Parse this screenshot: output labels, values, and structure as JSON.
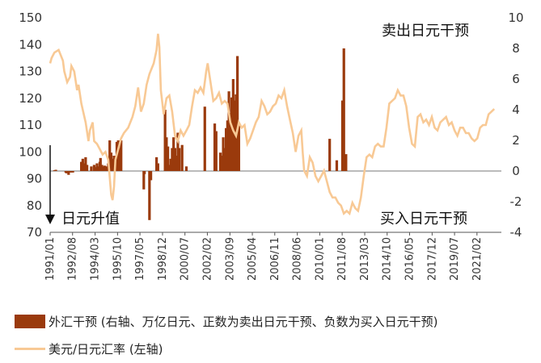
{
  "chart_data": {
    "type": "bar+line",
    "annotations": {
      "top_right": "卖出日元干预",
      "bottom_right": "买入日元干预",
      "left_arrow": "日元升值"
    },
    "left_axis": {
      "min": 70,
      "max": 150,
      "ticks": [
        "150",
        "140",
        "130",
        "120",
        "110",
        "100",
        "90",
        "80",
        "70"
      ]
    },
    "right_axis": {
      "min": -4,
      "max": 10,
      "ticks": [
        "10",
        "8",
        "6",
        "4",
        "2",
        "0",
        "-2",
        "-4"
      ]
    },
    "x_range": [
      1991.0,
      2022.8
    ],
    "x_tick_labels": [
      "1991/01",
      "1992/08",
      "1994/03",
      "1995/10",
      "1997/05",
      "1998/12",
      "2000/07",
      "2002/02",
      "2003/09",
      "2005/04",
      "2006/11",
      "2008/06",
      "2010/01",
      "2011/08",
      "2013/03",
      "2014/10",
      "2016/05",
      "2017/12",
      "2019/07",
      "2021/02"
    ],
    "x_ticks_decimal": [
      1991.0,
      1992.58,
      1994.17,
      1995.75,
      1997.33,
      1998.92,
      2000.5,
      2002.08,
      2003.67,
      2005.25,
      2006.83,
      2008.42,
      2010.0,
      2011.58,
      2013.17,
      2014.75,
      2016.33,
      2017.92,
      2019.5,
      2021.08
    ],
    "series": [
      {
        "name": "外汇干预 (右轴、万亿日元、正数为卖出日元干预、负数为买入日元干预)",
        "axis": "right",
        "color": "#9a3a0c",
        "kind": "bar",
        "points": [
          [
            1991.3,
            0.05
          ],
          [
            1991.4,
            0.08
          ],
          [
            1992.1,
            -0.1
          ],
          [
            1992.15,
            -0.15
          ],
          [
            1992.2,
            -0.12
          ],
          [
            1992.3,
            -0.25
          ],
          [
            1992.45,
            -0.1
          ],
          [
            1992.6,
            -0.1
          ],
          [
            1993.2,
            0.6
          ],
          [
            1993.3,
            0.8
          ],
          [
            1993.4,
            0.5
          ],
          [
            1993.5,
            0.9
          ],
          [
            1993.6,
            0.4
          ],
          [
            1993.9,
            0.3
          ],
          [
            1994.1,
            0.4
          ],
          [
            1994.2,
            0.25
          ],
          [
            1994.3,
            0.5
          ],
          [
            1994.4,
            0.3
          ],
          [
            1994.5,
            0.6
          ],
          [
            1994.55,
            0.85
          ],
          [
            1994.65,
            0.4
          ],
          [
            1994.7,
            0.3
          ],
          [
            1994.85,
            0.35
          ],
          [
            1995.0,
            0.3
          ],
          [
            1995.1,
            0.5
          ],
          [
            1995.2,
            2.0
          ],
          [
            1995.3,
            1.2
          ],
          [
            1995.4,
            0.8
          ],
          [
            1995.5,
            1.0
          ],
          [
            1995.6,
            0.6
          ],
          [
            1995.7,
            1.9
          ],
          [
            1995.8,
            2.0
          ],
          [
            1995.9,
            1.5
          ],
          [
            1996.0,
            2.0
          ],
          [
            1997.6,
            -1.2
          ],
          [
            1997.65,
            -0.2
          ],
          [
            1998.0,
            -3.2
          ],
          [
            1998.1,
            -0.6
          ],
          [
            1998.5,
            0.9
          ],
          [
            1998.6,
            0.5
          ],
          [
            1999.1,
            4.0
          ],
          [
            1999.2,
            2.2
          ],
          [
            1999.3,
            1.6
          ],
          [
            1999.4,
            0.4
          ],
          [
            1999.5,
            0.8
          ],
          [
            1999.6,
            1.5
          ],
          [
            1999.7,
            2.2
          ],
          [
            1999.8,
            1.5
          ],
          [
            1999.9,
            1.0
          ],
          [
            2000.0,
            2.5
          ],
          [
            2000.1,
            1.5
          ],
          [
            2000.3,
            1.7
          ],
          [
            2000.6,
            0.3
          ],
          [
            2001.9,
            4.2
          ],
          [
            2002.6,
            3.1
          ],
          [
            2002.7,
            2.6
          ],
          [
            2003.0,
            1.2
          ],
          [
            2003.1,
            1.0
          ],
          [
            2003.2,
            2.2
          ],
          [
            2003.3,
            1.5
          ],
          [
            2003.4,
            2.8
          ],
          [
            2003.5,
            3.3
          ],
          [
            2003.6,
            5.2
          ],
          [
            2003.7,
            3.8
          ],
          [
            2003.8,
            4.8
          ],
          [
            2003.9,
            6.0
          ],
          [
            2004.0,
            4.6
          ],
          [
            2004.1,
            5.0
          ],
          [
            2004.2,
            7.5
          ],
          [
            2004.3,
            3.1
          ],
          [
            2010.7,
            2.1
          ],
          [
            2011.2,
            0.7
          ],
          [
            2011.6,
            4.6
          ],
          [
            2011.7,
            8.0
          ],
          [
            2011.85,
            1.1
          ]
        ]
      },
      {
        "name": "美元/日元汇率 (左轴)",
        "axis": "left",
        "color": "#f8c995",
        "kind": "line",
        "points": [
          [
            1991.0,
            133
          ],
          [
            1991.1,
            135
          ],
          [
            1991.3,
            137
          ],
          [
            1991.6,
            138
          ],
          [
            1991.9,
            134
          ],
          [
            1992.0,
            130
          ],
          [
            1992.2,
            126
          ],
          [
            1992.4,
            128
          ],
          [
            1992.5,
            132
          ],
          [
            1992.7,
            130
          ],
          [
            1992.9,
            123
          ],
          [
            1993.0,
            125
          ],
          [
            1993.2,
            118
          ],
          [
            1993.5,
            111
          ],
          [
            1993.7,
            104
          ],
          [
            1993.8,
            108
          ],
          [
            1994.0,
            111
          ],
          [
            1994.1,
            104
          ],
          [
            1994.3,
            103
          ],
          [
            1994.5,
            101
          ],
          [
            1994.7,
            99
          ],
          [
            1994.9,
            100
          ],
          [
            1995.1,
            97
          ],
          [
            1995.3,
            84
          ],
          [
            1995.4,
            82
          ],
          [
            1995.5,
            87
          ],
          [
            1995.6,
            97
          ],
          [
            1995.8,
            101
          ],
          [
            1996.0,
            105
          ],
          [
            1996.2,
            107
          ],
          [
            1996.5,
            109
          ],
          [
            1996.8,
            113
          ],
          [
            1997.0,
            117
          ],
          [
            1997.2,
            124
          ],
          [
            1997.4,
            115
          ],
          [
            1997.6,
            118
          ],
          [
            1997.8,
            125
          ],
          [
            1998.0,
            129
          ],
          [
            1998.3,
            133
          ],
          [
            1998.5,
            138
          ],
          [
            1998.6,
            144
          ],
          [
            1998.7,
            139
          ],
          [
            1998.8,
            123
          ],
          [
            1999.0,
            114
          ],
          [
            1999.2,
            120
          ],
          [
            1999.4,
            121
          ],
          [
            1999.6,
            115
          ],
          [
            1999.8,
            106
          ],
          [
            2000.0,
            104
          ],
          [
            2000.2,
            108
          ],
          [
            2000.4,
            106
          ],
          [
            2000.6,
            108
          ],
          [
            2000.8,
            110
          ],
          [
            2001.0,
            117
          ],
          [
            2001.2,
            123
          ],
          [
            2001.4,
            122
          ],
          [
            2001.6,
            124
          ],
          [
            2001.8,
            122
          ],
          [
            2002.0,
            130
          ],
          [
            2002.1,
            133
          ],
          [
            2002.3,
            126
          ],
          [
            2002.5,
            119
          ],
          [
            2002.7,
            120
          ],
          [
            2002.9,
            122
          ],
          [
            2003.1,
            118
          ],
          [
            2003.3,
            119
          ],
          [
            2003.5,
            118
          ],
          [
            2003.7,
            111
          ],
          [
            2003.9,
            108
          ],
          [
            2004.1,
            106
          ],
          [
            2004.3,
            111
          ],
          [
            2004.5,
            109
          ],
          [
            2004.7,
            110
          ],
          [
            2004.9,
            103
          ],
          [
            2005.1,
            105
          ],
          [
            2005.3,
            108
          ],
          [
            2005.5,
            111
          ],
          [
            2005.7,
            113
          ],
          [
            2005.9,
            119
          ],
          [
            2006.1,
            117
          ],
          [
            2006.3,
            114
          ],
          [
            2006.5,
            115
          ],
          [
            2006.7,
            117
          ],
          [
            2006.9,
            118
          ],
          [
            2007.1,
            121
          ],
          [
            2007.3,
            120
          ],
          [
            2007.5,
            123
          ],
          [
            2007.7,
            117
          ],
          [
            2007.9,
            112
          ],
          [
            2008.1,
            107
          ],
          [
            2008.3,
            100
          ],
          [
            2008.5,
            106
          ],
          [
            2008.7,
            108
          ],
          [
            2008.8,
            100
          ],
          [
            2008.9,
            93
          ],
          [
            2009.1,
            91
          ],
          [
            2009.3,
            98
          ],
          [
            2009.5,
            96
          ],
          [
            2009.7,
            91
          ],
          [
            2009.9,
            89
          ],
          [
            2010.1,
            91
          ],
          [
            2010.3,
            93
          ],
          [
            2010.5,
            89
          ],
          [
            2010.7,
            85
          ],
          [
            2010.9,
            83
          ],
          [
            2011.1,
            83
          ],
          [
            2011.3,
            81
          ],
          [
            2011.5,
            80
          ],
          [
            2011.7,
            77
          ],
          [
            2011.9,
            78
          ],
          [
            2012.1,
            77
          ],
          [
            2012.3,
            81
          ],
          [
            2012.5,
            79
          ],
          [
            2012.7,
            78
          ],
          [
            2012.9,
            83
          ],
          [
            2013.1,
            91
          ],
          [
            2013.3,
            98
          ],
          [
            2013.5,
            99
          ],
          [
            2013.7,
            98
          ],
          [
            2013.9,
            102
          ],
          [
            2014.1,
            103
          ],
          [
            2014.3,
            102
          ],
          [
            2014.5,
            102
          ],
          [
            2014.7,
            109
          ],
          [
            2014.9,
            118
          ],
          [
            2015.1,
            119
          ],
          [
            2015.3,
            120
          ],
          [
            2015.5,
            123
          ],
          [
            2015.7,
            121
          ],
          [
            2015.9,
            121
          ],
          [
            2016.1,
            117
          ],
          [
            2016.3,
            109
          ],
          [
            2016.5,
            103
          ],
          [
            2016.7,
            102
          ],
          [
            2016.9,
            113
          ],
          [
            2017.1,
            114
          ],
          [
            2017.3,
            111
          ],
          [
            2017.5,
            112
          ],
          [
            2017.7,
            110
          ],
          [
            2017.9,
            113
          ],
          [
            2018.1,
            109
          ],
          [
            2018.3,
            108
          ],
          [
            2018.5,
            111
          ],
          [
            2018.7,
            112
          ],
          [
            2018.9,
            113
          ],
          [
            2019.1,
            110
          ],
          [
            2019.3,
            111
          ],
          [
            2019.5,
            108
          ],
          [
            2019.7,
            106
          ],
          [
            2019.9,
            109
          ],
          [
            2020.1,
            109
          ],
          [
            2020.3,
            107
          ],
          [
            2020.5,
            107
          ],
          [
            2020.7,
            105
          ],
          [
            2020.9,
            104
          ],
          [
            2021.1,
            105
          ],
          [
            2021.3,
            109
          ],
          [
            2021.5,
            110
          ],
          [
            2021.7,
            110
          ],
          [
            2021.9,
            114
          ],
          [
            2022.1,
            115
          ],
          [
            2022.3,
            116
          ]
        ]
      }
    ]
  }
}
